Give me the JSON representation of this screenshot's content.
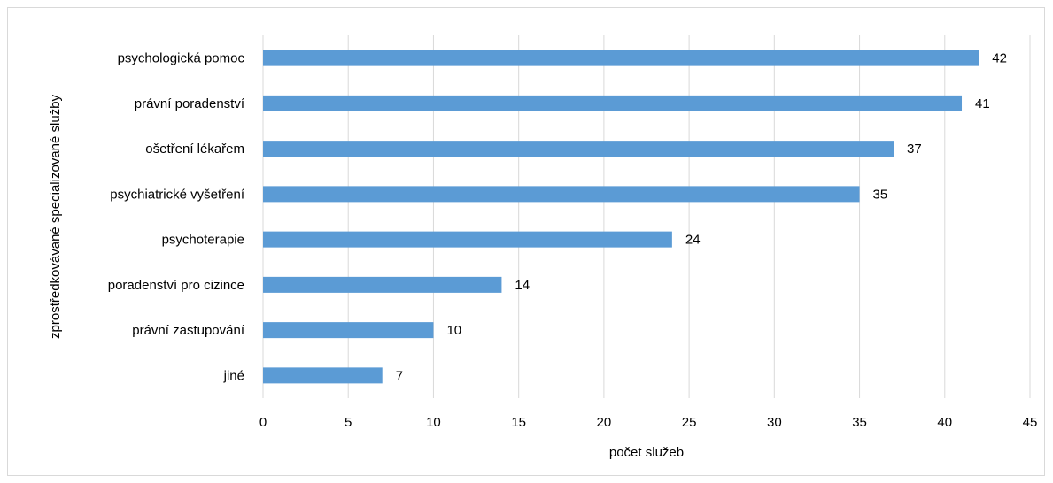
{
  "chart_data": {
    "type": "bar",
    "orientation": "horizontal",
    "categories": [
      "psychologická pomoc",
      "právní poradenství",
      "ošetření lékařem",
      "psychiatrické vyšetření",
      "psychoterapie",
      "poradenství pro cizince",
      "právní zastupování",
      "jiné"
    ],
    "values": [
      42,
      41,
      37,
      35,
      24,
      14,
      10,
      7
    ],
    "xlabel": "počet služeb",
    "ylabel": "zprostředkovávané specializované služby",
    "xlim": [
      0,
      45
    ],
    "xticks": [
      0,
      5,
      10,
      15,
      20,
      25,
      30,
      35,
      40,
      45
    ],
    "grid": "vertical",
    "data_labels": true,
    "legend": "none",
    "bar_color": "#5b9bd5",
    "grid_color": "#d9d9d9"
  }
}
